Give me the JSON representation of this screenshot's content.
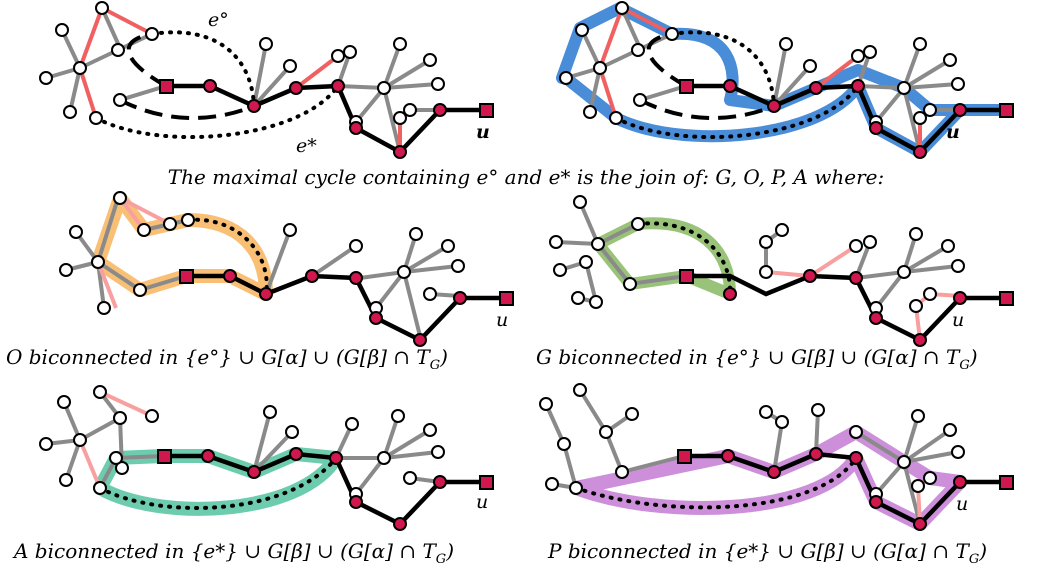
{
  "captions": {
    "top": "The maximal cycle containing  e°  and  e* is the join of:  G, O, P, A  where:",
    "o": "O  biconnected in {e°} ∪ G[α] ∪ (G[β] ∩ T",
    "g": "G  biconnected in {e°} ∪ G[β] ∪ (G[α] ∩ T",
    "a": "A  biconnected in {e*} ∪ G[β] ∪ (G[α] ∩ T",
    "p": "P  biconnected in {e*} ∪ G[β] ∪ (G[α] ∩ T",
    "sub": "G",
    "close": ")"
  },
  "labels": {
    "e_circ": "e°",
    "e_star": "e*",
    "u": "u"
  },
  "colors": {
    "tree_edge": "#8a8a8a",
    "red_edge": "#f06060",
    "path_edge": "#000000",
    "node_red": "#d0184f",
    "node_white": "#ffffff",
    "cycle_blue": "#3f86d6",
    "cycle_orange": "#f7b866",
    "cycle_green": "#8dbd6a",
    "cycle_teal": "#5cc7a4",
    "cycle_purple": "#c47bd3"
  }
}
